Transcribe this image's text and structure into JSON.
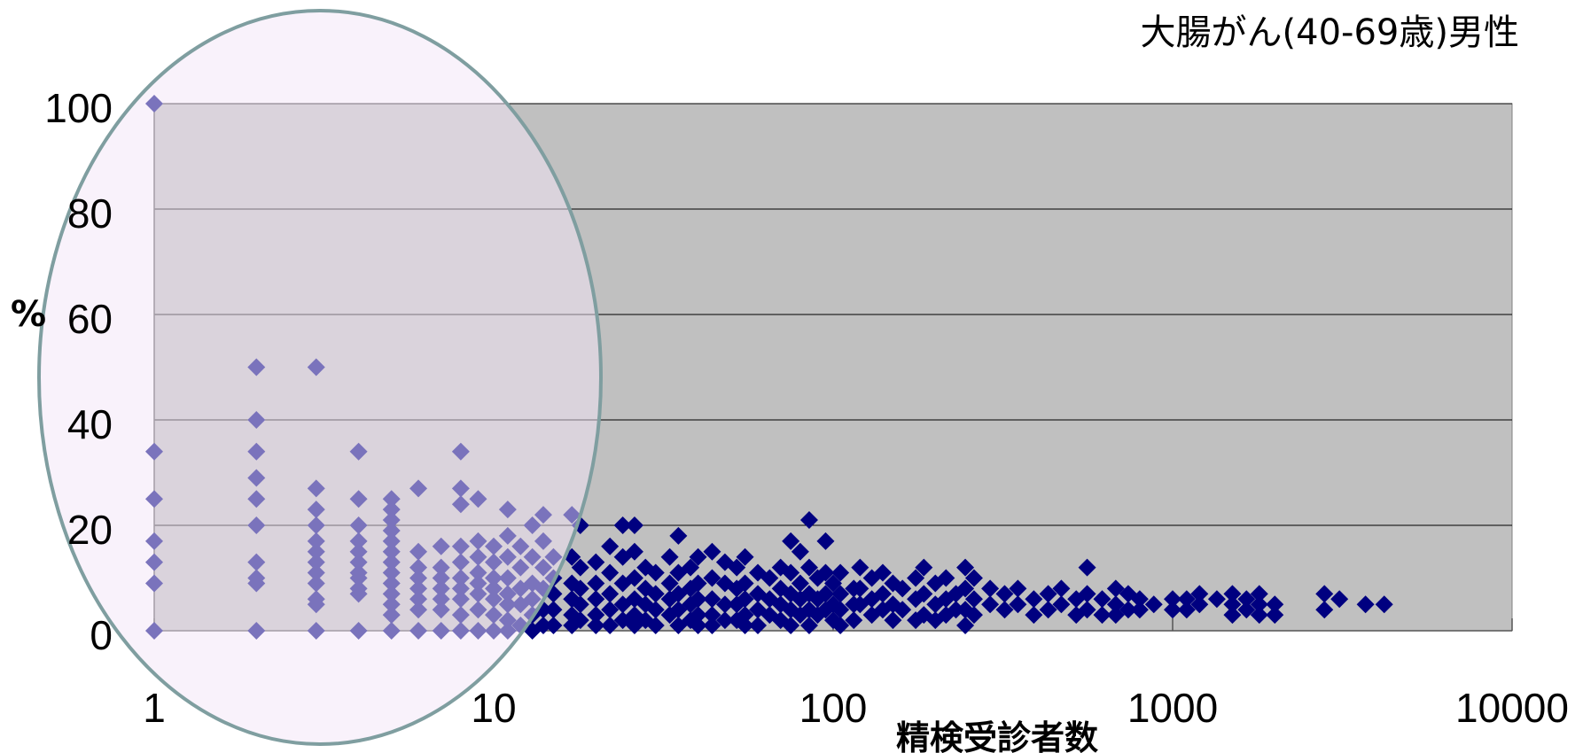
{
  "chart_data": {
    "type": "scatter",
    "title": "大腸がん(40-69歳)男性",
    "xlabel": "精検受診者数",
    "ylabel": "%",
    "x_scale": "log",
    "xlim": [
      1,
      10000
    ],
    "ylim": [
      0,
      100
    ],
    "x_ticks": [
      "1",
      "10",
      "100",
      "1000",
      "10000"
    ],
    "y_ticks": [
      "0",
      "20",
      "40",
      "60",
      "80",
      "100"
    ],
    "grid": true,
    "plot_background": "#c0c0c0",
    "marker_color": "#000080",
    "highlight_fill": "#f3e6f8",
    "highlight_stroke": "#7f9ea0",
    "series": [
      {
        "values": [
          [
            1,
            100
          ],
          [
            1,
            34
          ],
          [
            1,
            25
          ],
          [
            1,
            17
          ],
          [
            1,
            13
          ],
          [
            1,
            9
          ],
          [
            1,
            0
          ],
          [
            2,
            50
          ],
          [
            2,
            40
          ],
          [
            2,
            34
          ],
          [
            2,
            29
          ],
          [
            2,
            25
          ],
          [
            2,
            20
          ],
          [
            2,
            13
          ],
          [
            2,
            10
          ],
          [
            2,
            9
          ],
          [
            2,
            0
          ],
          [
            3,
            50
          ],
          [
            3,
            27
          ],
          [
            3,
            23
          ],
          [
            3,
            20
          ],
          [
            3,
            17
          ],
          [
            3,
            15
          ],
          [
            3,
            13
          ],
          [
            3,
            11
          ],
          [
            3,
            9
          ],
          [
            3,
            6
          ],
          [
            3,
            5
          ],
          [
            3,
            0
          ],
          [
            4,
            34
          ],
          [
            4,
            25
          ],
          [
            4,
            20
          ],
          [
            4,
            17
          ],
          [
            4,
            15
          ],
          [
            4,
            13
          ],
          [
            4,
            11
          ],
          [
            4,
            10
          ],
          [
            4,
            8
          ],
          [
            4,
            7
          ],
          [
            4,
            0
          ],
          [
            5,
            25
          ],
          [
            5,
            23
          ],
          [
            5,
            21
          ],
          [
            5,
            19
          ],
          [
            5,
            17
          ],
          [
            5,
            15
          ],
          [
            5,
            13
          ],
          [
            5,
            11
          ],
          [
            5,
            9
          ],
          [
            5,
            7
          ],
          [
            5,
            5
          ],
          [
            5,
            3
          ],
          [
            5,
            0
          ],
          [
            6,
            27
          ],
          [
            6,
            15
          ],
          [
            6,
            12
          ],
          [
            6,
            10
          ],
          [
            6,
            8
          ],
          [
            6,
            6
          ],
          [
            6,
            4
          ],
          [
            6,
            0
          ],
          [
            7,
            16
          ],
          [
            7,
            12
          ],
          [
            7,
            10
          ],
          [
            7,
            8
          ],
          [
            7,
            6
          ],
          [
            7,
            4
          ],
          [
            7,
            0
          ],
          [
            8,
            34
          ],
          [
            8,
            27
          ],
          [
            8,
            24
          ],
          [
            8,
            16
          ],
          [
            8,
            13
          ],
          [
            8,
            10
          ],
          [
            8,
            8
          ],
          [
            8,
            6
          ],
          [
            8,
            3
          ],
          [
            8,
            0
          ],
          [
            9,
            25
          ],
          [
            9,
            17
          ],
          [
            9,
            14
          ],
          [
            9,
            11
          ],
          [
            9,
            9
          ],
          [
            9,
            7
          ],
          [
            9,
            4
          ],
          [
            9,
            0
          ],
          [
            10,
            16
          ],
          [
            10,
            13
          ],
          [
            10,
            10
          ],
          [
            10,
            8
          ],
          [
            10,
            6
          ],
          [
            10,
            3
          ],
          [
            10,
            0
          ],
          [
            11,
            23
          ],
          [
            11,
            18
          ],
          [
            11,
            14
          ],
          [
            11,
            10
          ],
          [
            11,
            7
          ],
          [
            11,
            5
          ],
          [
            11,
            2
          ],
          [
            11,
            0
          ],
          [
            12,
            16
          ],
          [
            12,
            12
          ],
          [
            12,
            8
          ],
          [
            12,
            5
          ],
          [
            12,
            1
          ],
          [
            13,
            20
          ],
          [
            13,
            14
          ],
          [
            13,
            9
          ],
          [
            13,
            6
          ],
          [
            13,
            3
          ],
          [
            13,
            0
          ],
          [
            14,
            22
          ],
          [
            14,
            17
          ],
          [
            14,
            12
          ],
          [
            14,
            8
          ],
          [
            14,
            4
          ],
          [
            14,
            1
          ],
          [
            15,
            14
          ],
          [
            15,
            10
          ],
          [
            15,
            7
          ],
          [
            15,
            4
          ],
          [
            15,
            1
          ],
          [
            17,
            22
          ],
          [
            17,
            14
          ],
          [
            17,
            9
          ],
          [
            17,
            6
          ],
          [
            17,
            3
          ],
          [
            17,
            1
          ],
          [
            18,
            20
          ],
          [
            18,
            12
          ],
          [
            18,
            8
          ],
          [
            18,
            5
          ],
          [
            18,
            2
          ],
          [
            20,
            13
          ],
          [
            20,
            9
          ],
          [
            20,
            6
          ],
          [
            20,
            3
          ],
          [
            20,
            1
          ],
          [
            22,
            16
          ],
          [
            22,
            11
          ],
          [
            22,
            7
          ],
          [
            22,
            4
          ],
          [
            22,
            1
          ],
          [
            24,
            20
          ],
          [
            24,
            14
          ],
          [
            24,
            9
          ],
          [
            24,
            5
          ],
          [
            24,
            2
          ],
          [
            26,
            20
          ],
          [
            26,
            15
          ],
          [
            26,
            10
          ],
          [
            26,
            6
          ],
          [
            26,
            3
          ],
          [
            26,
            1
          ],
          [
            28,
            12
          ],
          [
            28,
            8
          ],
          [
            28,
            5
          ],
          [
            28,
            2
          ],
          [
            30,
            11
          ],
          [
            30,
            7
          ],
          [
            30,
            4
          ],
          [
            30,
            1
          ],
          [
            33,
            14
          ],
          [
            33,
            9
          ],
          [
            33,
            6
          ],
          [
            33,
            3
          ],
          [
            35,
            18
          ],
          [
            35,
            11
          ],
          [
            35,
            7
          ],
          [
            35,
            4
          ],
          [
            35,
            1
          ],
          [
            38,
            12
          ],
          [
            38,
            8
          ],
          [
            38,
            5
          ],
          [
            38,
            2
          ],
          [
            40,
            14
          ],
          [
            40,
            9
          ],
          [
            40,
            6
          ],
          [
            40,
            3
          ],
          [
            40,
            1
          ],
          [
            44,
            15
          ],
          [
            44,
            10
          ],
          [
            44,
            6
          ],
          [
            44,
            3
          ],
          [
            44,
            1
          ],
          [
            48,
            13
          ],
          [
            48,
            9
          ],
          [
            48,
            5
          ],
          [
            48,
            2
          ],
          [
            52,
            12
          ],
          [
            52,
            8
          ],
          [
            52,
            5
          ],
          [
            52,
            2
          ],
          [
            55,
            14
          ],
          [
            55,
            9
          ],
          [
            55,
            6
          ],
          [
            55,
            3
          ],
          [
            55,
            1
          ],
          [
            60,
            11
          ],
          [
            60,
            7
          ],
          [
            60,
            4
          ],
          [
            60,
            1
          ],
          [
            65,
            10
          ],
          [
            65,
            6
          ],
          [
            65,
            3
          ],
          [
            70,
            12
          ],
          [
            70,
            8
          ],
          [
            70,
            5
          ],
          [
            70,
            2
          ],
          [
            75,
            17
          ],
          [
            75,
            11
          ],
          [
            75,
            7
          ],
          [
            75,
            4
          ],
          [
            75,
            1
          ],
          [
            80,
            15
          ],
          [
            80,
            9
          ],
          [
            80,
            6
          ],
          [
            80,
            3
          ],
          [
            85,
            21
          ],
          [
            85,
            12
          ],
          [
            85,
            7
          ],
          [
            85,
            4
          ],
          [
            85,
            1
          ],
          [
            90,
            10
          ],
          [
            90,
            6
          ],
          [
            90,
            3
          ],
          [
            95,
            17
          ],
          [
            95,
            11
          ],
          [
            95,
            7
          ],
          [
            95,
            4
          ],
          [
            100,
            9
          ],
          [
            100,
            5
          ],
          [
            100,
            2
          ],
          [
            105,
            11
          ],
          [
            105,
            7
          ],
          [
            105,
            4
          ],
          [
            105,
            1
          ],
          [
            115,
            8
          ],
          [
            115,
            5
          ],
          [
            115,
            2
          ],
          [
            120,
            12
          ],
          [
            120,
            8
          ],
          [
            120,
            5
          ],
          [
            130,
            10
          ],
          [
            130,
            6
          ],
          [
            130,
            3
          ],
          [
            140,
            11
          ],
          [
            140,
            7
          ],
          [
            140,
            4
          ],
          [
            150,
            9
          ],
          [
            150,
            5
          ],
          [
            150,
            2
          ],
          [
            160,
            8
          ],
          [
            160,
            4
          ],
          [
            175,
            10
          ],
          [
            175,
            6
          ],
          [
            175,
            2
          ],
          [
            185,
            12
          ],
          [
            185,
            7
          ],
          [
            185,
            3
          ],
          [
            200,
            9
          ],
          [
            200,
            5
          ],
          [
            200,
            2
          ],
          [
            215,
            10
          ],
          [
            215,
            6
          ],
          [
            215,
            3
          ],
          [
            230,
            7
          ],
          [
            230,
            4
          ],
          [
            245,
            12
          ],
          [
            245,
            8
          ],
          [
            245,
            4
          ],
          [
            245,
            1
          ],
          [
            260,
            10
          ],
          [
            260,
            6
          ],
          [
            260,
            3
          ],
          [
            290,
            8
          ],
          [
            290,
            5
          ],
          [
            320,
            7
          ],
          [
            320,
            4
          ],
          [
            350,
            8
          ],
          [
            350,
            5
          ],
          [
            390,
            6
          ],
          [
            390,
            3
          ],
          [
            430,
            7
          ],
          [
            430,
            4
          ],
          [
            470,
            8
          ],
          [
            470,
            5
          ],
          [
            520,
            6
          ],
          [
            520,
            3
          ],
          [
            560,
            12
          ],
          [
            560,
            7
          ],
          [
            560,
            4
          ],
          [
            620,
            6
          ],
          [
            620,
            3
          ],
          [
            680,
            8
          ],
          [
            680,
            5
          ],
          [
            680,
            3
          ],
          [
            740,
            7
          ],
          [
            740,
            4
          ],
          [
            800,
            6
          ],
          [
            800,
            4
          ],
          [
            880,
            5
          ],
          [
            1000,
            6
          ],
          [
            1000,
            4
          ],
          [
            1100,
            6
          ],
          [
            1100,
            4
          ],
          [
            1200,
            7
          ],
          [
            1200,
            5
          ],
          [
            1350,
            6
          ],
          [
            1500,
            7
          ],
          [
            1500,
            5
          ],
          [
            1500,
            3
          ],
          [
            1650,
            6
          ],
          [
            1650,
            4
          ],
          [
            1800,
            7
          ],
          [
            1800,
            5
          ],
          [
            1800,
            3
          ],
          [
            2000,
            5
          ],
          [
            2000,
            3
          ],
          [
            2800,
            7
          ],
          [
            2800,
            4
          ],
          [
            3100,
            6
          ],
          [
            3700,
            5
          ],
          [
            4200,
            5
          ]
        ]
      }
    ]
  }
}
